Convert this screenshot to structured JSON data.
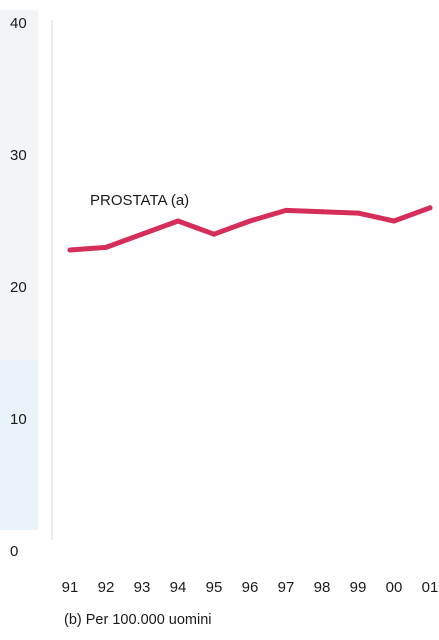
{
  "chart_data": {
    "type": "line",
    "x": [
      "91",
      "92",
      "93",
      "94",
      "95",
      "96",
      "97",
      "98",
      "99",
      "00",
      "01"
    ],
    "series": [
      {
        "name": "PROSTATA (a)",
        "values": [
          22.8,
          23.0,
          24.0,
          25.0,
          24.0,
          25.0,
          25.8,
          25.7,
          25.6,
          25.0,
          26.0
        ],
        "color": "#d62e5a"
      }
    ],
    "ylim": [
      0,
      40
    ],
    "yticks": [
      0,
      10,
      20,
      30,
      40
    ],
    "grid": false,
    "annotation": "PROSTATA (a)",
    "footnote": "(b) Per 100.000 uomini"
  }
}
